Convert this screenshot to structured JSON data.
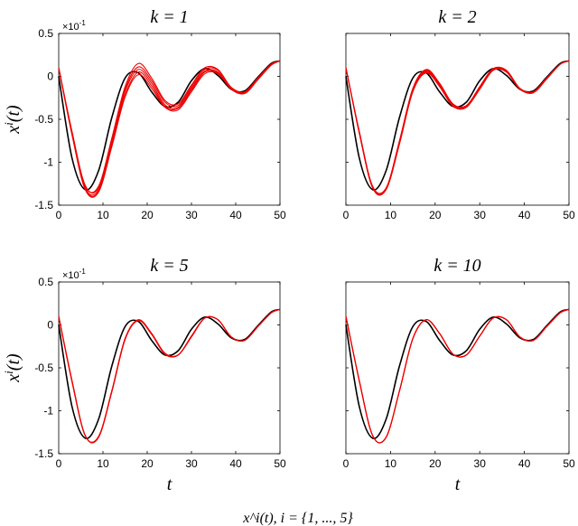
{
  "figure": {
    "caption": "x^i(t), i = {1, ..., 5}",
    "xlabel": "t",
    "ylabel": "x^i(t)",
    "multiplier": "×10^-1"
  },
  "chart_data": [
    {
      "type": "line",
      "title": "k = 1",
      "xlabel": "",
      "ylabel": "x^i(t)",
      "xlim": [
        0,
        50
      ],
      "ylim": [
        -1.5,
        0.5
      ],
      "xticks": [
        "0",
        "10",
        "20",
        "30",
        "40",
        "50"
      ],
      "yticks": [
        "0.5",
        "0",
        "-0.5",
        "-1",
        "-1.5"
      ],
      "multiplier": "×10^-1",
      "reference_color": "#000000",
      "agent_color": "#ee0000",
      "reference": {
        "x": [
          0,
          3,
          6,
          9,
          12,
          15,
          18,
          21,
          24,
          27,
          30,
          33,
          36,
          39,
          42,
          45,
          48,
          50
        ],
        "y": [
          0,
          -0.95,
          -1.32,
          -1.1,
          -0.48,
          -0.02,
          0.04,
          -0.18,
          -0.35,
          -0.3,
          -0.05,
          0.09,
          0.01,
          -0.15,
          -0.17,
          -0.01,
          0.15,
          0.18
        ]
      },
      "agents": [
        {
          "x": [
            0,
            3,
            6,
            9,
            12,
            15,
            18,
            21,
            24,
            27,
            30,
            33,
            36,
            39,
            42,
            45,
            48,
            50
          ],
          "y": [
            0.1,
            -0.65,
            -1.28,
            -1.28,
            -0.72,
            -0.12,
            0.15,
            -0.02,
            -0.28,
            -0.32,
            -0.1,
            0.1,
            0.08,
            -0.13,
            -0.18,
            -0.02,
            0.14,
            0.18
          ]
        },
        {
          "x": [
            0,
            3,
            6,
            9,
            12,
            15,
            18,
            21,
            24,
            27,
            30,
            33,
            36,
            39,
            42,
            45,
            48,
            50
          ],
          "y": [
            0.1,
            -0.66,
            -1.3,
            -1.32,
            -0.78,
            -0.18,
            0.08,
            -0.08,
            -0.33,
            -0.36,
            -0.14,
            0.06,
            0.05,
            -0.14,
            -0.19,
            -0.03,
            0.14,
            0.18
          ]
        },
        {
          "x": [
            0,
            3,
            6,
            9,
            12,
            15,
            18,
            21,
            24,
            27,
            30,
            33,
            36,
            39,
            42,
            45,
            48,
            50
          ],
          "y": [
            0.1,
            -0.68,
            -1.32,
            -1.35,
            -0.82,
            -0.24,
            0.02,
            -0.14,
            -0.36,
            -0.39,
            -0.18,
            0.03,
            0.03,
            -0.15,
            -0.2,
            -0.04,
            0.13,
            0.18
          ]
        },
        {
          "x": [
            0,
            3,
            6,
            9,
            12,
            15,
            18,
            21,
            24,
            27,
            30,
            33,
            36,
            39,
            42,
            45,
            48,
            50
          ],
          "y": [
            0.1,
            -0.64,
            -1.27,
            -1.3,
            -0.75,
            -0.15,
            0.11,
            -0.05,
            -0.3,
            -0.34,
            -0.12,
            0.08,
            0.07,
            -0.13,
            -0.18,
            -0.02,
            0.14,
            0.18
          ]
        },
        {
          "x": [
            0,
            3,
            6,
            9,
            12,
            15,
            18,
            21,
            24,
            27,
            30,
            33,
            36,
            39,
            42,
            45,
            48,
            50
          ],
          "y": [
            0.1,
            -0.67,
            -1.31,
            -1.34,
            -0.8,
            -0.22,
            0.05,
            -0.11,
            -0.35,
            -0.37,
            -0.16,
            0.05,
            0.04,
            -0.14,
            -0.19,
            -0.03,
            0.13,
            0.18
          ]
        }
      ]
    },
    {
      "type": "line",
      "title": "k = 2",
      "xlabel": "",
      "ylabel": "",
      "xlim": [
        0,
        50
      ],
      "ylim": [
        -1.5,
        0.5
      ],
      "xticks": [
        "0",
        "10",
        "20",
        "30",
        "40",
        "50"
      ],
      "yticks": [],
      "reference_color": "#000000",
      "agent_color": "#ee0000",
      "reference": {
        "x": [
          0,
          3,
          6,
          9,
          12,
          15,
          18,
          21,
          24,
          27,
          30,
          33,
          36,
          39,
          42,
          45,
          48,
          50
        ],
        "y": [
          0,
          -0.95,
          -1.32,
          -1.1,
          -0.48,
          -0.02,
          0.04,
          -0.18,
          -0.35,
          -0.3,
          -0.05,
          0.09,
          0.01,
          -0.15,
          -0.17,
          -0.01,
          0.15,
          0.18
        ]
      },
      "agents": [
        {
          "x": [
            0,
            3,
            6,
            9,
            12,
            15,
            18,
            21,
            24,
            27,
            30,
            33,
            36,
            39,
            42,
            45,
            48,
            50
          ],
          "y": [
            0.1,
            -0.64,
            -1.28,
            -1.3,
            -0.75,
            -0.14,
            0.08,
            -0.08,
            -0.32,
            -0.34,
            -0.12,
            0.09,
            0.07,
            -0.14,
            -0.18,
            -0.02,
            0.14,
            0.18
          ]
        },
        {
          "x": [
            0,
            3,
            6,
            9,
            12,
            15,
            18,
            21,
            24,
            27,
            30,
            33,
            36,
            39,
            42,
            45,
            48,
            50
          ],
          "y": [
            0.1,
            -0.65,
            -1.29,
            -1.31,
            -0.77,
            -0.16,
            0.06,
            -0.1,
            -0.34,
            -0.35,
            -0.13,
            0.08,
            0.06,
            -0.14,
            -0.18,
            -0.02,
            0.14,
            0.18
          ]
        },
        {
          "x": [
            0,
            3,
            6,
            9,
            12,
            15,
            18,
            21,
            24,
            27,
            30,
            33,
            36,
            39,
            42,
            45,
            48,
            50
          ],
          "y": [
            0.1,
            -0.66,
            -1.3,
            -1.32,
            -0.79,
            -0.18,
            0.04,
            -0.12,
            -0.35,
            -0.36,
            -0.15,
            0.07,
            0.05,
            -0.15,
            -0.19,
            -0.03,
            0.14,
            0.18
          ]
        },
        {
          "x": [
            0,
            3,
            6,
            9,
            12,
            15,
            18,
            21,
            24,
            27,
            30,
            33,
            36,
            39,
            42,
            45,
            48,
            50
          ],
          "y": [
            0.1,
            -0.65,
            -1.29,
            -1.31,
            -0.76,
            -0.15,
            0.07,
            -0.09,
            -0.33,
            -0.35,
            -0.12,
            0.09,
            0.06,
            -0.14,
            -0.18,
            -0.02,
            0.14,
            0.18
          ]
        },
        {
          "x": [
            0,
            3,
            6,
            9,
            12,
            15,
            18,
            21,
            24,
            27,
            30,
            33,
            36,
            39,
            42,
            45,
            48,
            50
          ],
          "y": [
            0.1,
            -0.66,
            -1.3,
            -1.32,
            -0.78,
            -0.17,
            0.05,
            -0.11,
            -0.34,
            -0.36,
            -0.14,
            0.08,
            0.05,
            -0.15,
            -0.19,
            -0.03,
            0.14,
            0.18
          ]
        }
      ]
    },
    {
      "type": "line",
      "title": "k = 5",
      "xlabel": "t",
      "ylabel": "x^i(t)",
      "xlim": [
        0,
        50
      ],
      "ylim": [
        -1.5,
        0.5
      ],
      "xticks": [
        "0",
        "10",
        "20",
        "30",
        "40",
        "50"
      ],
      "yticks": [
        "0.5",
        "0",
        "-0.5",
        "-1",
        "-1.5"
      ],
      "multiplier": "×10^-1",
      "reference_color": "#000000",
      "agent_color": "#ee0000",
      "reference": {
        "x": [
          0,
          3,
          6,
          9,
          12,
          15,
          18,
          21,
          24,
          27,
          30,
          33,
          36,
          39,
          42,
          45,
          48,
          50
        ],
        "y": [
          0,
          -0.95,
          -1.32,
          -1.1,
          -0.48,
          -0.02,
          0.04,
          -0.18,
          -0.35,
          -0.3,
          -0.05,
          0.09,
          0.01,
          -0.15,
          -0.17,
          -0.01,
          0.15,
          0.18
        ]
      },
      "agents": [
        {
          "x": [
            0,
            3,
            6,
            9,
            12,
            15,
            18,
            21,
            24,
            27,
            30,
            33,
            36,
            39,
            42,
            45,
            48,
            50
          ],
          "y": [
            0.1,
            -0.65,
            -1.29,
            -1.3,
            -0.77,
            -0.16,
            0.06,
            -0.1,
            -0.33,
            -0.35,
            -0.13,
            0.08,
            0.06,
            -0.14,
            -0.18,
            -0.02,
            0.14,
            0.18
          ]
        },
        {
          "x": [
            0,
            3,
            6,
            9,
            12,
            15,
            18,
            21,
            24,
            27,
            30,
            33,
            36,
            39,
            42,
            45,
            48,
            50
          ],
          "y": [
            0.1,
            -0.65,
            -1.29,
            -1.31,
            -0.77,
            -0.16,
            0.05,
            -0.1,
            -0.34,
            -0.35,
            -0.13,
            0.08,
            0.06,
            -0.14,
            -0.18,
            -0.02,
            0.14,
            0.18
          ]
        },
        {
          "x": [
            0,
            3,
            6,
            9,
            12,
            15,
            18,
            21,
            24,
            27,
            30,
            33,
            36,
            39,
            42,
            45,
            48,
            50
          ],
          "y": [
            0.1,
            -0.66,
            -1.29,
            -1.31,
            -0.78,
            -0.17,
            0.05,
            -0.11,
            -0.34,
            -0.35,
            -0.14,
            0.08,
            0.06,
            -0.14,
            -0.18,
            -0.02,
            0.14,
            0.18
          ]
        },
        {
          "x": [
            0,
            3,
            6,
            9,
            12,
            15,
            18,
            21,
            24,
            27,
            30,
            33,
            36,
            39,
            42,
            45,
            48,
            50
          ],
          "y": [
            0.1,
            -0.65,
            -1.29,
            -1.3,
            -0.77,
            -0.16,
            0.06,
            -0.1,
            -0.33,
            -0.35,
            -0.13,
            0.08,
            0.06,
            -0.14,
            -0.18,
            -0.02,
            0.14,
            0.18
          ]
        },
        {
          "x": [
            0,
            3,
            6,
            9,
            12,
            15,
            18,
            21,
            24,
            27,
            30,
            33,
            36,
            39,
            42,
            45,
            48,
            50
          ],
          "y": [
            0.1,
            -0.66,
            -1.29,
            -1.31,
            -0.78,
            -0.17,
            0.05,
            -0.11,
            -0.34,
            -0.35,
            -0.14,
            0.08,
            0.06,
            -0.14,
            -0.18,
            -0.02,
            0.14,
            0.18
          ]
        }
      ]
    },
    {
      "type": "line",
      "title": "k = 10",
      "xlabel": "t",
      "ylabel": "",
      "xlim": [
        0,
        50
      ],
      "ylim": [
        -1.5,
        0.5
      ],
      "xticks": [
        "0",
        "10",
        "20",
        "30",
        "40",
        "50"
      ],
      "yticks": [],
      "reference_color": "#000000",
      "agent_color": "#ee0000",
      "reference": {
        "x": [
          0,
          3,
          6,
          9,
          12,
          15,
          18,
          21,
          24,
          27,
          30,
          33,
          36,
          39,
          42,
          45,
          48,
          50
        ],
        "y": [
          0,
          -0.95,
          -1.32,
          -1.1,
          -0.48,
          -0.02,
          0.04,
          -0.18,
          -0.35,
          -0.3,
          -0.05,
          0.09,
          0.01,
          -0.15,
          -0.17,
          -0.01,
          0.15,
          0.18
        ]
      },
      "agents": [
        {
          "x": [
            0,
            3,
            6,
            9,
            12,
            15,
            18,
            21,
            24,
            27,
            30,
            33,
            36,
            39,
            42,
            45,
            48,
            50
          ],
          "y": [
            0.1,
            -0.65,
            -1.29,
            -1.31,
            -0.77,
            -0.16,
            0.06,
            -0.1,
            -0.34,
            -0.35,
            -0.13,
            0.08,
            0.06,
            -0.14,
            -0.18,
            -0.02,
            0.14,
            0.18
          ]
        },
        {
          "x": [
            0,
            3,
            6,
            9,
            12,
            15,
            18,
            21,
            24,
            27,
            30,
            33,
            36,
            39,
            42,
            45,
            48,
            50
          ],
          "y": [
            0.1,
            -0.65,
            -1.29,
            -1.31,
            -0.77,
            -0.16,
            0.06,
            -0.1,
            -0.34,
            -0.35,
            -0.13,
            0.08,
            0.06,
            -0.14,
            -0.18,
            -0.02,
            0.14,
            0.18
          ]
        },
        {
          "x": [
            0,
            3,
            6,
            9,
            12,
            15,
            18,
            21,
            24,
            27,
            30,
            33,
            36,
            39,
            42,
            45,
            48,
            50
          ],
          "y": [
            0.1,
            -0.65,
            -1.29,
            -1.31,
            -0.77,
            -0.16,
            0.06,
            -0.1,
            -0.34,
            -0.35,
            -0.13,
            0.08,
            0.06,
            -0.14,
            -0.18,
            -0.02,
            0.14,
            0.18
          ]
        },
        {
          "x": [
            0,
            3,
            6,
            9,
            12,
            15,
            18,
            21,
            24,
            27,
            30,
            33,
            36,
            39,
            42,
            45,
            48,
            50
          ],
          "y": [
            0.1,
            -0.65,
            -1.29,
            -1.31,
            -0.77,
            -0.16,
            0.06,
            -0.1,
            -0.34,
            -0.35,
            -0.13,
            0.08,
            0.06,
            -0.14,
            -0.18,
            -0.02,
            0.14,
            0.18
          ]
        },
        {
          "x": [
            0,
            3,
            6,
            9,
            12,
            15,
            18,
            21,
            24,
            27,
            30,
            33,
            36,
            39,
            42,
            45,
            48,
            50
          ],
          "y": [
            0.1,
            -0.65,
            -1.29,
            -1.31,
            -0.77,
            -0.16,
            0.06,
            -0.1,
            -0.34,
            -0.35,
            -0.13,
            0.08,
            0.06,
            -0.14,
            -0.18,
            -0.02,
            0.14,
            0.18
          ]
        }
      ]
    }
  ]
}
